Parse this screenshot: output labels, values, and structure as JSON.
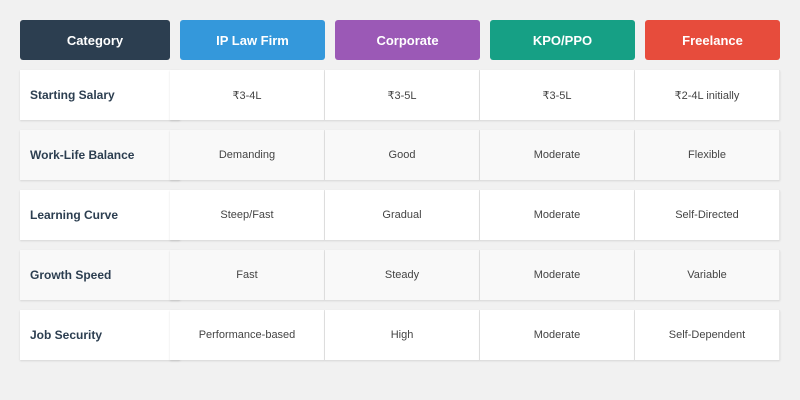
{
  "table": {
    "headers": [
      {
        "label": "Category",
        "color": "#2c3e50"
      },
      {
        "label": "IP Law Firm",
        "color": "#3498db"
      },
      {
        "label": "Corporate",
        "color": "#9b59b6"
      },
      {
        "label": "KPO/PPO",
        "color": "#16a085"
      },
      {
        "label": "Freelance",
        "color": "#e74c3c"
      }
    ],
    "rows": [
      [
        "Starting Salary",
        "₹3-4L",
        "₹3-5L",
        "₹3-5L",
        "₹2-4L initially"
      ],
      [
        "Work-Life Balance",
        "Demanding",
        "Good",
        "Moderate",
        "Flexible"
      ],
      [
        "Learning Curve",
        "Steep/Fast",
        "Gradual",
        "Moderate",
        "Self-Directed"
      ],
      [
        "Growth Speed",
        "Fast",
        "Steady",
        "Moderate",
        "Variable"
      ],
      [
        "Job Security",
        "Performance-based",
        "High",
        "Moderate",
        "Self-Dependent"
      ]
    ]
  }
}
